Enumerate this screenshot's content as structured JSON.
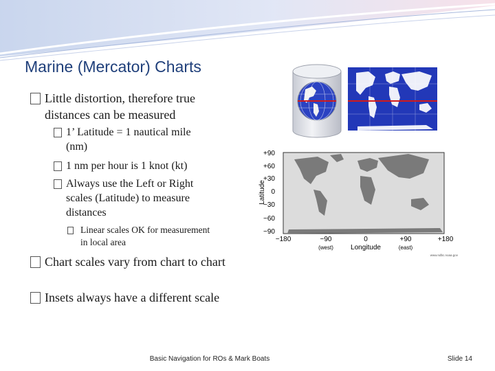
{
  "slide": {
    "title": "Marine (Mercator) Charts",
    "bullets": [
      {
        "level": 1,
        "text": "Little distortion, therefore true distances can be measured"
      },
      {
        "level": 2,
        "text": "1’ Latitude = 1 nautical mile (nm)"
      },
      {
        "level": 2,
        "text": "1 nm per hour is 1 knot (kt)"
      },
      {
        "level": 2,
        "text": "Always use the Left or Right scales (Latitude) to measure distances"
      },
      {
        "level": 3,
        "text": "Linear scales OK for measurement in local area"
      },
      {
        "level": 1,
        "text": "Chart scales vary from chart to chart"
      },
      {
        "level": 1,
        "text": "Insets always have a different scale"
      }
    ]
  },
  "map_figure": {
    "y_axis_label": "Latitude",
    "x_axis_label": "Longitude",
    "lat_ticks": [
      "+90",
      "+60",
      "+30",
      "0",
      "−30",
      "−60",
      "−90"
    ],
    "lon_ticks": [
      "−180",
      "−90",
      "0",
      "+90",
      "+180"
    ],
    "lon_subtitles": {
      "west": "(west)",
      "east": "(east)"
    },
    "credit": "www.ndbc.noaa.gov"
  },
  "footer": {
    "center": "Basic Navigation for ROs & Mark Boats",
    "slide_number": "Slide 14"
  },
  "colors": {
    "title": "#1f3f7a",
    "map_ocean": "#2035b5",
    "equator": "#d21a1a",
    "banner": "#9aaed8"
  }
}
